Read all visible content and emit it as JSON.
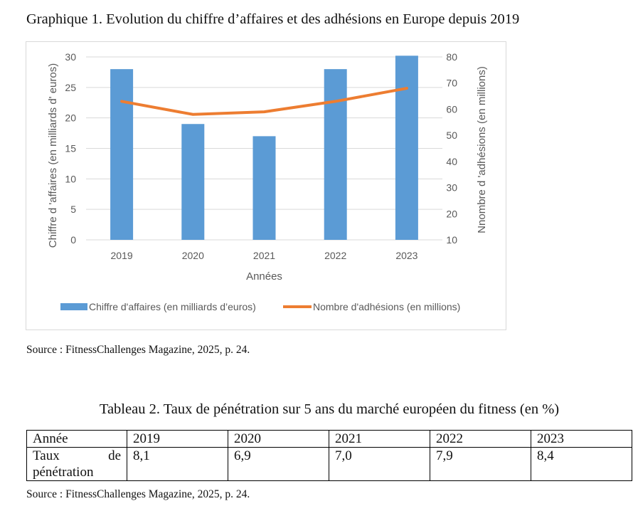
{
  "figure_title": "Graphique 1. Evolution du chiffre d’affaires et des adhésions en Europe depuis 2019",
  "source_chart": "Source : FitnessChallenges Magazine, 2025, p. 24.",
  "chart_data": {
    "type": "bar",
    "categories": [
      "2019",
      "2020",
      "2021",
      "2022",
      "2023"
    ],
    "series": [
      {
        "name": "Chiffre d'affaires (en milliards d’euros)",
        "type": "bar",
        "axis": "left",
        "color": "#5b9bd5",
        "values": [
          28,
          19,
          17,
          28,
          30.2
        ]
      },
      {
        "name": "Nombre d'adhésions (en millions)",
        "type": "line",
        "axis": "right",
        "color": "#ed7d31",
        "values": [
          63,
          58,
          59,
          63,
          68
        ]
      }
    ],
    "xlabel": "Années",
    "ylabel_left": "Chiffre d 'affaires  (en milliards d' euros)",
    "ylabel_right": "Nnombre d 'adhésions (en millions)",
    "ylim_left": [
      0,
      30
    ],
    "yticks_left": [
      "0",
      "5",
      "10",
      "15",
      "20",
      "25",
      "30"
    ],
    "ylim_right": [
      10,
      80
    ],
    "yticks_right": [
      "10",
      "20",
      "30",
      "40",
      "50",
      "60",
      "70",
      "80"
    ],
    "grid": true,
    "legend": "bottom"
  },
  "table": {
    "title": "Tableau 2. Taux de pénétration sur 5 ans du marché européen du fitness (en %)",
    "header_label": "Année",
    "years": [
      "2019",
      "2020",
      "2021",
      "2022",
      "2023"
    ],
    "row_label_line1_left": "Taux",
    "row_label_line1_right": "de",
    "row_label_line2": "pénétration",
    "values": [
      "8,1",
      "6,9",
      "7,0",
      "7,9",
      "8,4"
    ]
  },
  "source_table": "Source : FitnessChallenges Magazine, 2025, p. 24."
}
